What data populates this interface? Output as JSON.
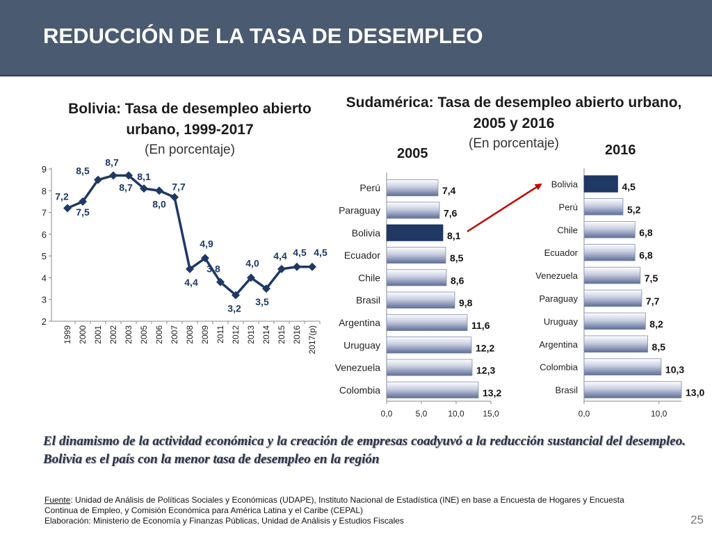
{
  "slide": {
    "title": "REDUCCIÓN DE LA TASA DE DESEMPLEO",
    "statement": "El dinamismo de la actividad económica y la creación de empresas coadyuvó a la reducción sustancial del desempleo. Bolivia es el país con la menor tasa de desempleo en la región",
    "source": {
      "fuente_label": "Fuente",
      "fuente_text": ": Unidad de Análisis de Políticas Sociales y Económicas (UDAPE), Instituto Nacional de Estadística (INE) en base a Encuesta de Hogares y Encuesta Continua de Empleo, y Comisión Económica para América Latina y el Caribe (CEPAL)",
      "elaboracion": "Elaboración: Ministerio de Economía y Finanzas Públicas, Unidad de Análisis y Estudios Fiscales"
    },
    "page_number": "25"
  },
  "colors": {
    "header_bg": "#4a5a70",
    "line": "#1f3864",
    "bar_normal": "gradient #ffffff–#5d6d98",
    "bar_highlight": "#1f3864",
    "arrow": "#c00000"
  },
  "chart_data": [
    {
      "id": "bolivia_trend",
      "type": "line",
      "title": "Bolivia: Tasa de desempleo abierto urbano, 1999-2017",
      "subtitle": "(En porcentaje)",
      "categories": [
        "1999",
        "2000",
        "2001",
        "2002",
        "2003",
        "2005",
        "2006",
        "2007",
        "2008",
        "2009",
        "2011",
        "2012",
        "2013",
        "2014",
        "2015",
        "2016",
        "2017(p)"
      ],
      "values": [
        7.2,
        7.5,
        8.5,
        8.7,
        8.7,
        8.1,
        8.0,
        7.7,
        4.4,
        4.9,
        3.8,
        3.2,
        4.0,
        3.5,
        4.4,
        4.5,
        4.5
      ],
      "value_labels": [
        "7,2",
        "7,5",
        "8,5",
        "8,7",
        "8,7",
        "8,1",
        "8,0",
        "7,7",
        "4,4",
        "4,9",
        "3,8",
        "3,2",
        "4,0",
        "3,5",
        "4,4",
        "4,5",
        "4,5"
      ],
      "yticks": [
        "2",
        "3",
        "4",
        "5",
        "6",
        "7",
        "8",
        "9"
      ],
      "ylim": [
        2,
        9
      ],
      "grid": false
    },
    {
      "id": "sudamerica_2005",
      "type": "bar",
      "orientation": "horizontal",
      "title": "Sudamérica: Tasa de desempleo abierto urbano, 2005 y 2016",
      "subtitle": "(En porcentaje)",
      "panel_label": "2005",
      "categories": [
        "Perú",
        "Paraguay",
        "Bolivia",
        "Ecuador",
        "Chile",
        "Brasil",
        "Argentina",
        "Uruguay",
        "Venezuela",
        "Colombia"
      ],
      "values": [
        7.4,
        7.6,
        8.1,
        8.5,
        8.6,
        9.8,
        11.6,
        12.2,
        12.3,
        13.2
      ],
      "value_labels": [
        "7,4",
        "7,6",
        "8,1",
        "8,5",
        "8,6",
        "9,8",
        "11,6",
        "12,2",
        "12,3",
        "13,2"
      ],
      "highlight": "Bolivia",
      "xticks": [
        "0,0",
        "5,0",
        "10,0",
        "15,0"
      ],
      "xlim": [
        0,
        15
      ]
    },
    {
      "id": "sudamerica_2016",
      "type": "bar",
      "orientation": "horizontal",
      "panel_label": "2016",
      "categories": [
        "Bolivia",
        "Perú",
        "Chile",
        "Ecuador",
        "Venezuela",
        "Paraguay",
        "Uruguay",
        "Argentina",
        "Colombia",
        "Brasil"
      ],
      "values": [
        4.5,
        5.2,
        6.8,
        6.8,
        7.5,
        7.7,
        8.2,
        8.5,
        10.3,
        13.0
      ],
      "value_labels": [
        "4,5",
        "5,2",
        "6,8",
        "6,8",
        "7,5",
        "7,7",
        "8,2",
        "8,5",
        "10,3",
        "13,0"
      ],
      "highlight": "Bolivia",
      "xticks": [
        "0,0",
        "10,0"
      ],
      "xlim": [
        0,
        13
      ]
    }
  ]
}
